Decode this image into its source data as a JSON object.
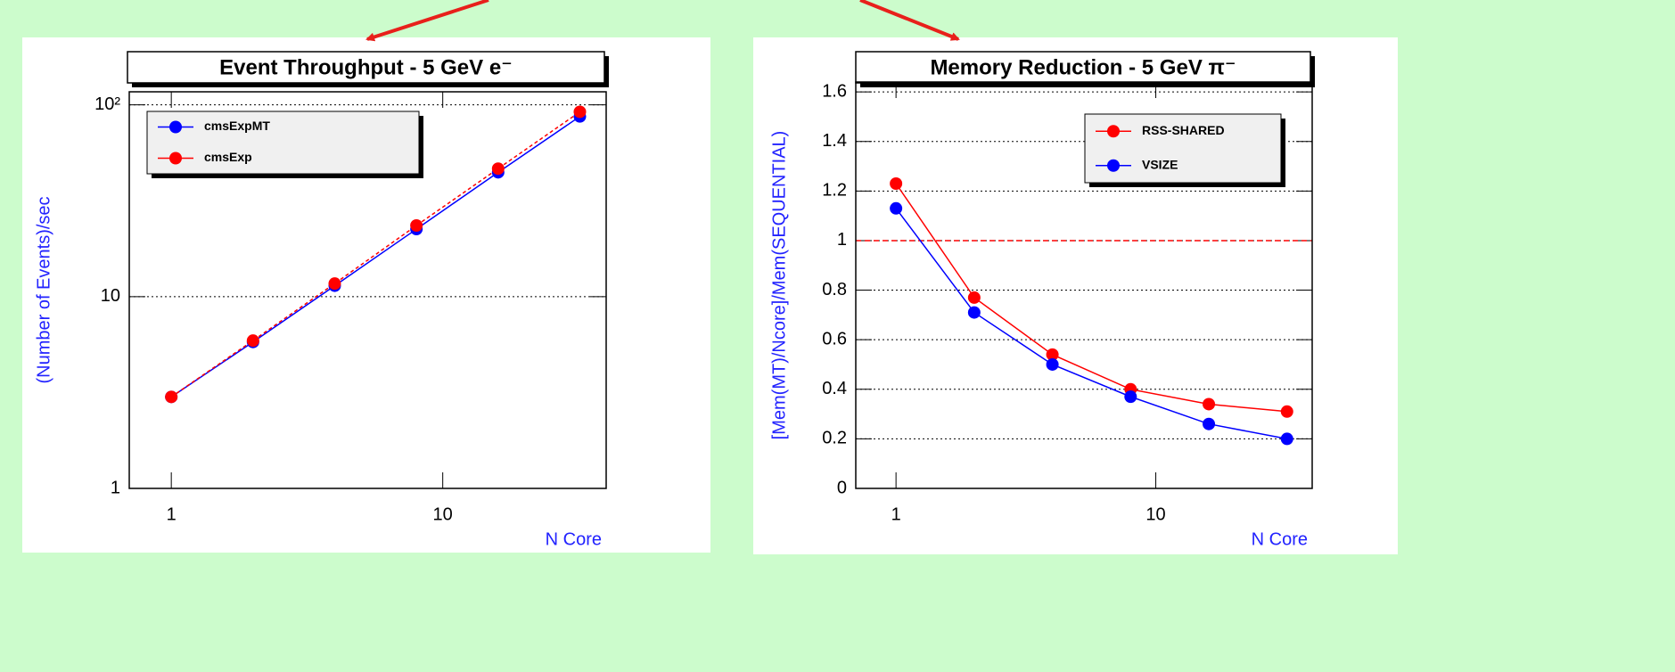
{
  "chart_data": [
    {
      "type": "line",
      "title": "Event Throughput - 5 GeV e⁻",
      "xlabel": "N Core",
      "ylabel": "(Number of Events)/sec",
      "x": [
        1,
        2,
        4,
        8,
        16,
        32
      ],
      "series": [
        {
          "name": "cmsExpMT",
          "color": "#0000ff",
          "dashed": false,
          "values": [
            3.0,
            5.8,
            11.4,
            22.5,
            44.5,
            87
          ]
        },
        {
          "name": "cmsExp",
          "color": "#ff0000",
          "dashed": true,
          "values": [
            3.0,
            5.9,
            11.7,
            23.5,
            46.5,
            92
          ]
        }
      ],
      "xlog": true,
      "ylog": true,
      "xlim": [
        0.7,
        40
      ],
      "ylim": [
        1,
        117
      ],
      "xticks": [
        1,
        10
      ],
      "yticks": [
        1,
        10,
        {
          "value": 100,
          "label": "10²"
        }
      ],
      "grid": true
    },
    {
      "type": "line",
      "title": "Memory Reduction - 5 GeV π⁻",
      "xlabel": "N Core",
      "ylabel": "[Mem(MT)/Ncore]/Mem(SEQUENTIAL)",
      "x": [
        1,
        2,
        4,
        8,
        16,
        32
      ],
      "series": [
        {
          "name": "RSS-SHARED",
          "color": "#ff0000",
          "dashed": false,
          "values": [
            1.23,
            0.77,
            0.54,
            0.4,
            0.34,
            0.31
          ]
        },
        {
          "name": "VSIZE",
          "color": "#0000ff",
          "dashed": false,
          "values": [
            1.13,
            0.71,
            0.5,
            0.37,
            0.26,
            0.2
          ]
        }
      ],
      "xlog": true,
      "ylog": false,
      "xlim": [
        0.7,
        40
      ],
      "ylim": [
        0,
        1.64
      ],
      "xticks": [
        1,
        10
      ],
      "yticks": [
        0,
        0.2,
        0.4,
        0.6,
        0.8,
        1,
        1.2,
        1.4,
        1.6
      ],
      "grid": true,
      "hline": 1
    }
  ]
}
